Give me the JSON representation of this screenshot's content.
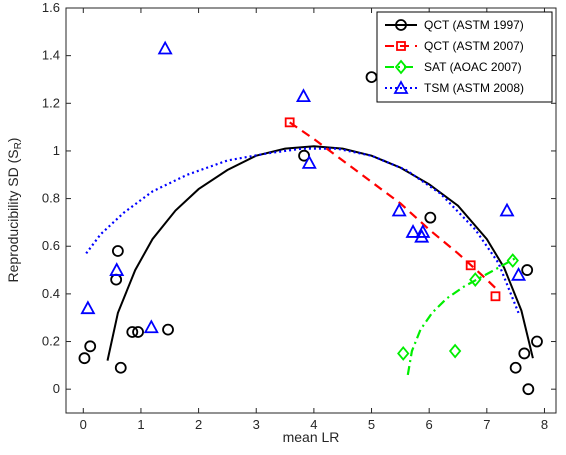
{
  "chart_data": {
    "type": "scatter",
    "xlabel": "mean LR",
    "ylabel": "Reproducibility SD (S",
    "ylabel_sub": "R",
    "ylabel_end": ")",
    "xlim": [
      -0.3,
      8.2
    ],
    "ylim": [
      -0.1,
      1.6
    ],
    "x_ticks": [
      0,
      1,
      2,
      3,
      4,
      5,
      6,
      7,
      8
    ],
    "x_tick_labels": [
      "0",
      "1",
      "2",
      "3",
      "4",
      "5",
      "6",
      "7",
      "8"
    ],
    "y_ticks": [
      0,
      0.2,
      0.4,
      0.6,
      0.8,
      1.0,
      1.2,
      1.4,
      1.6
    ],
    "y_tick_labels": [
      "0",
      "0.2",
      "0.4",
      "0.6",
      "0.8",
      "1",
      "1.2",
      "1.4",
      "1.6"
    ],
    "grid": false,
    "legend_position": "top-right",
    "series": [
      {
        "name": "QCT (ASTM 1997)",
        "color": "#000000",
        "marker": "circle",
        "line_style": "solid",
        "points": [
          [
            0.02,
            0.13
          ],
          [
            0.12,
            0.18
          ],
          [
            0.57,
            0.46
          ],
          [
            0.6,
            0.58
          ],
          [
            0.65,
            0.09
          ],
          [
            0.85,
            0.24
          ],
          [
            0.95,
            0.24
          ],
          [
            1.47,
            0.25
          ],
          [
            3.83,
            0.98
          ],
          [
            5.0,
            1.31
          ],
          [
            6.02,
            0.72
          ],
          [
            7.5,
            0.09
          ],
          [
            7.65,
            0.15
          ],
          [
            7.7,
            0.5
          ],
          [
            7.72,
            0.0
          ],
          [
            7.87,
            0.2
          ]
        ],
        "fit": [
          [
            0.42,
            0.12
          ],
          [
            0.6,
            0.32
          ],
          [
            0.9,
            0.5
          ],
          [
            1.2,
            0.63
          ],
          [
            1.6,
            0.75
          ],
          [
            2.0,
            0.84
          ],
          [
            2.5,
            0.92
          ],
          [
            3.0,
            0.98
          ],
          [
            3.5,
            1.01
          ],
          [
            4.0,
            1.02
          ],
          [
            4.5,
            1.01
          ],
          [
            5.0,
            0.98
          ],
          [
            5.5,
            0.93
          ],
          [
            6.0,
            0.86
          ],
          [
            6.5,
            0.77
          ],
          [
            7.0,
            0.63
          ],
          [
            7.3,
            0.51
          ],
          [
            7.6,
            0.33
          ],
          [
            7.8,
            0.13
          ]
        ]
      },
      {
        "name": "QCT (ASTM 2007)",
        "color": "#ff0000",
        "marker": "square",
        "line_style": "dashed",
        "points": [
          [
            3.58,
            1.12
          ],
          [
            6.72,
            0.52
          ],
          [
            7.15,
            0.39
          ]
        ],
        "fit": [
          [
            3.58,
            1.12
          ],
          [
            4.0,
            1.05
          ],
          [
            4.5,
            0.96
          ],
          [
            5.0,
            0.87
          ],
          [
            5.5,
            0.78
          ],
          [
            6.0,
            0.67
          ],
          [
            6.5,
            0.57
          ],
          [
            7.0,
            0.46
          ],
          [
            7.17,
            0.42
          ]
        ]
      },
      {
        "name": "SAT (AOAC 2007)",
        "color": "#00ee00",
        "marker": "diamond",
        "line_style": "dashdot",
        "points": [
          [
            5.55,
            0.15
          ],
          [
            6.45,
            0.16
          ],
          [
            6.8,
            0.46
          ],
          [
            7.45,
            0.54
          ]
        ],
        "fit": [
          [
            5.63,
            0.06
          ],
          [
            5.7,
            0.16
          ],
          [
            5.85,
            0.25
          ],
          [
            6.05,
            0.32
          ],
          [
            6.3,
            0.38
          ],
          [
            6.6,
            0.43
          ],
          [
            6.9,
            0.47
          ],
          [
            7.2,
            0.51
          ],
          [
            7.5,
            0.55
          ]
        ]
      },
      {
        "name": "TSM (ASTM 2008)",
        "color": "#0000ff",
        "marker": "triangle",
        "line_style": "dotted",
        "points": [
          [
            0.08,
            0.34
          ],
          [
            0.58,
            0.5
          ],
          [
            1.18,
            0.26
          ],
          [
            1.42,
            1.43
          ],
          [
            3.82,
            1.23
          ],
          [
            3.92,
            0.95
          ],
          [
            5.48,
            0.75
          ],
          [
            5.72,
            0.66
          ],
          [
            5.87,
            0.64
          ],
          [
            5.89,
            0.66
          ],
          [
            7.35,
            0.75
          ],
          [
            7.55,
            0.48
          ]
        ],
        "fit": [
          [
            0.05,
            0.57
          ],
          [
            0.3,
            0.65
          ],
          [
            0.7,
            0.74
          ],
          [
            1.2,
            0.83
          ],
          [
            1.8,
            0.9
          ],
          [
            2.5,
            0.96
          ],
          [
            3.2,
            0.99
          ],
          [
            3.8,
            1.01
          ],
          [
            4.4,
            1.01
          ],
          [
            5.0,
            0.98
          ],
          [
            5.6,
            0.92
          ],
          [
            6.2,
            0.82
          ],
          [
            6.8,
            0.67
          ],
          [
            7.2,
            0.53
          ],
          [
            7.55,
            0.32
          ]
        ]
      }
    ]
  }
}
